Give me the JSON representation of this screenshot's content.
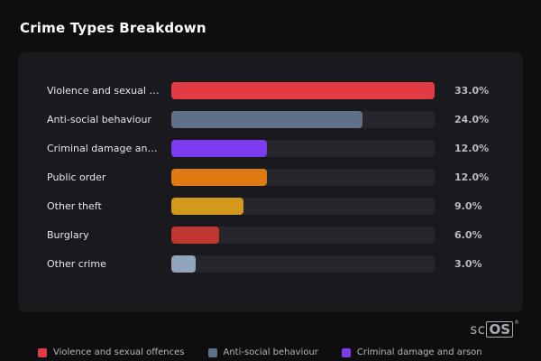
{
  "page": {
    "title": "Crime Types Breakdown"
  },
  "chart_data": {
    "type": "bar",
    "orientation": "horizontal",
    "title": "Crime Types Breakdown",
    "xlabel": "",
    "ylabel": "",
    "xlim": [
      0,
      33
    ],
    "grid": false,
    "legend_position": "bottom",
    "categories": [
      "Violence and sexual offences",
      "Anti-social behaviour",
      "Criminal damage and arson",
      "Public order",
      "Other theft",
      "Burglary",
      "Other crime"
    ],
    "values": [
      33.0,
      24.0,
      12.0,
      12.0,
      9.0,
      6.0,
      3.0
    ],
    "value_labels": [
      "33.0%",
      "24.0%",
      "12.0%",
      "12.0%",
      "9.0%",
      "6.0%",
      "3.0%"
    ],
    "bar_colors": [
      "#e23b43",
      "#5f7089",
      "#7d3bf0",
      "#e07b14",
      "#d3991d",
      "#c23632",
      "#90a5bb"
    ],
    "track_color": "#26262c"
  },
  "legend": {
    "items": [
      {
        "label": "Violence and sexual offences",
        "color": "#e23b43"
      },
      {
        "label": "Anti-social behaviour",
        "color": "#5f7089"
      },
      {
        "label": "Criminal damage and arson",
        "color": "#7d3bf0"
      }
    ]
  },
  "branding": {
    "logo_part1": "sc",
    "logo_part2": "OS",
    "registered_mark": "®"
  }
}
